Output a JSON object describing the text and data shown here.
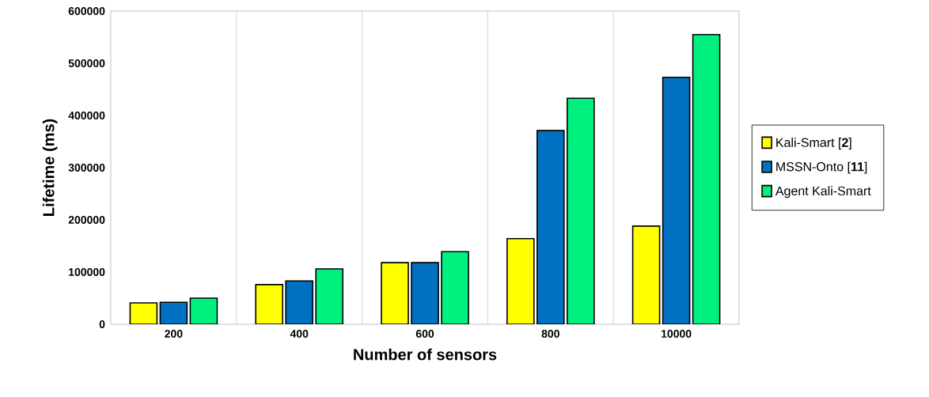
{
  "chart_data": {
    "type": "bar",
    "xlabel": "Number of sensors",
    "ylabel": "Lifetime (ms)",
    "categories": [
      "200",
      "400",
      "600",
      "800",
      "10000"
    ],
    "series": [
      {
        "name": "Kali-Smart [**2**]",
        "color": "#ffff00",
        "values": [
          41000,
          76000,
          118000,
          164000,
          188000
        ]
      },
      {
        "name": "MSSN-Onto [**11**]",
        "color": "#0070c0",
        "values": [
          42000,
          83000,
          118000,
          371000,
          473000
        ]
      },
      {
        "name": "Agent Kali-Smart",
        "color": "#00f080",
        "values": [
          50000,
          106000,
          139000,
          433000,
          555000
        ]
      }
    ],
    "ylim": [
      0,
      600000
    ],
    "yticks": [
      0,
      100000,
      200000,
      300000,
      400000,
      500000,
      600000
    ],
    "grid": "x",
    "legend": "right"
  }
}
